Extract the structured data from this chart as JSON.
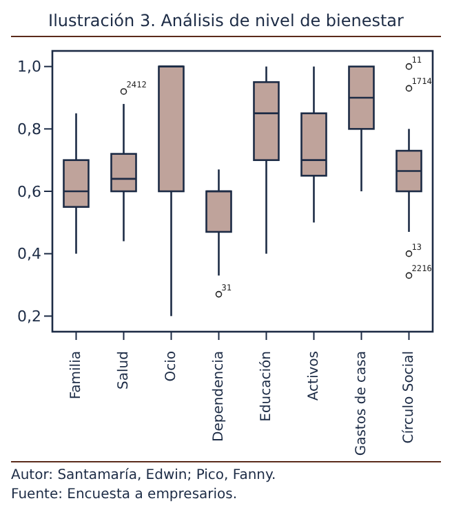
{
  "chart_data": {
    "type": "box",
    "title": "Ilustración 3. Análisis de nivel de bienestar",
    "categories": [
      "Familia",
      "Salud",
      "Ocio",
      "Dependencia",
      "Educación",
      "Activos",
      "Gastos de casa",
      "Círculo Social"
    ],
    "color": "#bfa39b",
    "boxes": [
      {
        "low": 0.4,
        "q1": 0.55,
        "median": 0.6,
        "q3": 0.7,
        "high": 0.85
      },
      {
        "low": 0.44,
        "q1": 0.6,
        "median": 0.64,
        "q3": 0.72,
        "high": 0.88
      },
      {
        "low": 0.2,
        "q1": 0.6,
        "median": 1.0,
        "q3": 1.0,
        "high": 1.0
      },
      {
        "low": 0.33,
        "q1": 0.47,
        "median": 0.6,
        "q3": 0.6,
        "high": 0.67
      },
      {
        "low": 0.4,
        "q1": 0.7,
        "median": 0.85,
        "q3": 0.95,
        "high": 1.0
      },
      {
        "low": 0.5,
        "q1": 0.65,
        "median": 0.7,
        "q3": 0.85,
        "high": 1.0
      },
      {
        "low": 0.6,
        "q1": 0.8,
        "median": 0.9,
        "q3": 1.0,
        "high": 1.0
      },
      {
        "low": 0.47,
        "q1": 0.6,
        "median": 0.665,
        "q3": 0.73,
        "high": 0.8
      }
    ],
    "series": [
      {
        "type": "scatter",
        "color": "#222222",
        "x": [
          "Salud",
          "Dependencia",
          "Círculo Social",
          "Círculo Social",
          "Círculo Social",
          "Círculo Social"
        ],
        "values": [
          0.92,
          0.27,
          1.0,
          0.93,
          0.4,
          0.33
        ]
      }
    ],
    "ylim": [
      0.15,
      1.05
    ],
    "yticks": [
      {
        "value": 0.2,
        "label": "0,2"
      },
      {
        "value": 0.4,
        "label": "0,4"
      },
      {
        "value": 0.6,
        "label": "0,6"
      },
      {
        "value": 0.8,
        "label": "0,8"
      },
      {
        "value": 1.0,
        "label": "1,0"
      }
    ],
    "annotations": [
      {
        "text": "24",
        "x": "Salud",
        "y": 0.92
      },
      {
        "text": "12",
        "x": "Salud",
        "y": 0.92
      },
      {
        "text": "31",
        "x": "Dependencia",
        "y": 0.27
      },
      {
        "text": "11",
        "x": "Círculo Social",
        "y": 1.0
      },
      {
        "text": "17",
        "x": "Círculo Social",
        "y": 0.93
      },
      {
        "text": "14",
        "x": "Círculo Social",
        "y": 0.93
      },
      {
        "text": "13",
        "x": "Círculo Social",
        "y": 0.4
      },
      {
        "text": "22",
        "x": "Círculo Social",
        "y": 0.33
      },
      {
        "text": "16",
        "x": "Círculo Social",
        "y": 0.33
      },
      "Autor: Santamaría, Edwin; Pico, Fanny.",
      "Fuente: Encuesta a empresarios."
    ],
    "grid": false,
    "legend": false,
    "marker": "circle"
  }
}
